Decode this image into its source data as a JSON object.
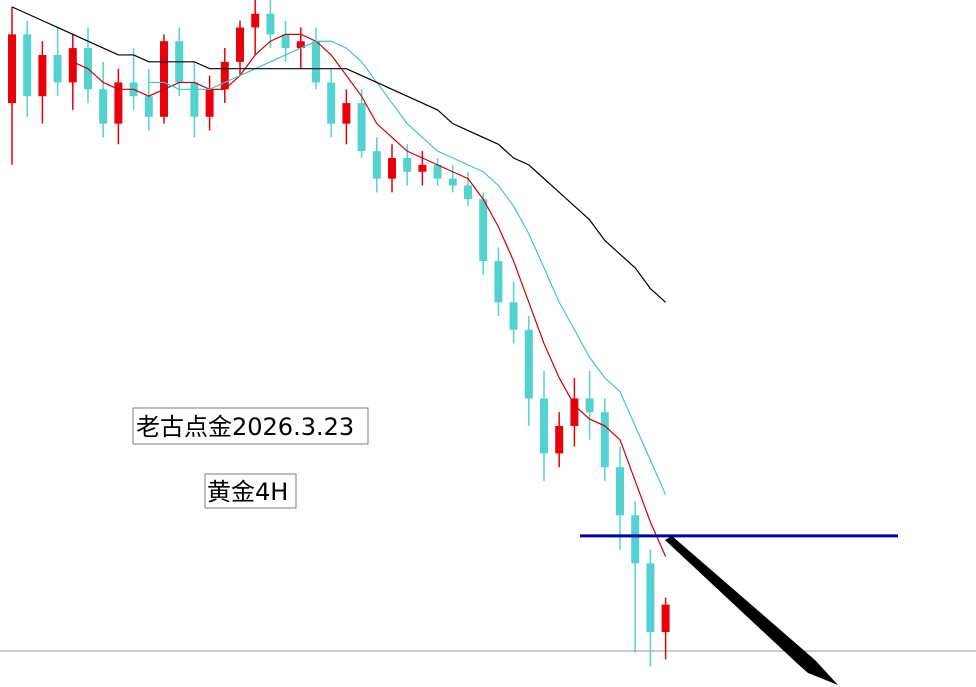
{
  "chart_data": {
    "type": "candlestick",
    "annotations": [
      "老古点金2026.3.23",
      "黄金4H"
    ],
    "ylim": [
      0,
      100
    ],
    "up_color": "#e8000b",
    "down_color": "#54d2d2",
    "ohlc": [
      [
        85,
        99,
        76,
        95
      ],
      [
        95,
        97,
        83,
        86
      ],
      [
        86,
        94,
        82,
        92
      ],
      [
        92,
        96,
        86,
        88
      ],
      [
        88,
        95,
        84,
        93
      ],
      [
        93,
        96,
        85,
        87
      ],
      [
        87,
        91,
        80,
        82
      ],
      [
        82,
        90,
        79,
        88
      ],
      [
        88,
        93,
        84,
        86
      ],
      [
        86,
        90,
        81,
        83
      ],
      [
        83,
        95,
        82,
        94
      ],
      [
        94,
        96,
        86,
        88
      ],
      [
        88,
        91,
        80,
        83
      ],
      [
        83,
        89,
        81,
        87
      ],
      [
        87,
        93,
        85,
        91
      ],
      [
        91,
        97,
        89,
        96
      ],
      [
        96,
        100,
        92,
        98
      ],
      [
        98,
        100,
        93,
        95
      ],
      [
        95,
        97,
        91,
        93
      ],
      [
        93,
        96,
        90,
        94
      ],
      [
        94,
        96,
        87,
        88
      ],
      [
        88,
        90,
        80,
        82
      ],
      [
        82,
        87,
        79,
        85
      ],
      [
        85,
        87,
        77,
        78
      ],
      [
        78,
        80,
        72,
        74
      ],
      [
        74,
        79,
        72,
        77
      ],
      [
        77,
        79,
        73,
        75
      ],
      [
        75,
        78,
        73,
        76
      ],
      [
        76,
        77,
        73,
        74
      ],
      [
        74,
        76,
        72,
        73
      ],
      [
        73,
        75,
        70,
        71
      ],
      [
        71,
        72,
        60,
        62
      ],
      [
        62,
        64,
        54,
        56
      ],
      [
        56,
        59,
        50,
        52
      ],
      [
        52,
        54,
        38,
        42
      ],
      [
        42,
        46,
        30,
        34
      ],
      [
        34,
        40,
        32,
        38
      ],
      [
        38,
        45,
        35,
        42
      ],
      [
        42,
        46,
        36,
        40
      ],
      [
        40,
        42,
        30,
        32
      ],
      [
        32,
        35,
        20,
        25
      ],
      [
        25,
        27,
        5,
        18
      ],
      [
        18,
        20,
        3,
        8
      ],
      [
        8,
        13,
        4,
        12
      ]
    ],
    "series": [
      {
        "color": "#cc0000",
        "values": [
          null,
          null,
          null,
          null,
          91,
          90,
          88,
          87,
          87,
          86,
          87,
          88,
          88,
          87,
          87,
          89,
          92,
          94,
          95,
          95,
          94,
          92,
          89,
          86,
          82,
          80,
          78,
          77,
          76,
          75,
          74,
          71,
          67,
          62,
          56,
          50,
          45,
          41,
          39,
          38,
          36,
          30,
          24,
          19
        ]
      },
      {
        "color": "#3cc8c8",
        "values": [
          null,
          null,
          null,
          null,
          null,
          null,
          null,
          null,
          null,
          88,
          88,
          87,
          87,
          87,
          88,
          89,
          90,
          91,
          92,
          93,
          94,
          94,
          93,
          91,
          88,
          85,
          82,
          80,
          78,
          77,
          76,
          75,
          73,
          70,
          66,
          61,
          56,
          52,
          48,
          45,
          43,
          38,
          33,
          28
        ]
      },
      {
        "color": "#000000",
        "values": [
          99,
          98,
          97,
          96,
          95,
          94,
          93,
          92,
          92,
          91,
          91,
          91,
          91,
          90,
          90,
          90,
          90,
          90,
          90,
          90,
          90,
          90,
          90,
          89,
          88,
          87,
          86,
          85,
          84,
          82,
          81,
          80,
          79,
          77,
          76,
          74,
          72,
          70,
          68,
          65,
          63,
          61,
          58,
          56
        ]
      }
    ],
    "level": {
      "value": 22,
      "color": "#0000aa"
    }
  }
}
